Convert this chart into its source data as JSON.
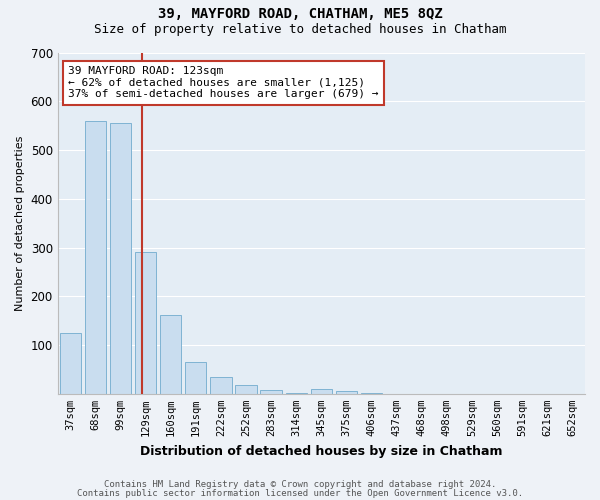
{
  "title": "39, MAYFORD ROAD, CHATHAM, ME5 8QZ",
  "subtitle": "Size of property relative to detached houses in Chatham",
  "xlabel": "Distribution of detached houses by size in Chatham",
  "ylabel": "Number of detached properties",
  "categories": [
    "37sqm",
    "68sqm",
    "99sqm",
    "129sqm",
    "160sqm",
    "191sqm",
    "222sqm",
    "252sqm",
    "283sqm",
    "314sqm",
    "345sqm",
    "375sqm",
    "406sqm",
    "437sqm",
    "468sqm",
    "498sqm",
    "529sqm",
    "560sqm",
    "591sqm",
    "621sqm",
    "652sqm"
  ],
  "values": [
    125,
    560,
    555,
    290,
    162,
    65,
    35,
    18,
    8,
    2,
    10,
    5,
    2,
    0,
    0,
    0,
    0,
    0,
    0,
    0,
    0
  ],
  "bar_color": "#c9ddef",
  "bar_edgecolor": "#7fb3d3",
  "marker_color": "#c0392b",
  "annotation_text": "39 MAYFORD ROAD: 123sqm\n← 62% of detached houses are smaller (1,125)\n37% of semi-detached houses are larger (679) →",
  "annotation_box_edgecolor": "#c0392b",
  "ylim": [
    0,
    700
  ],
  "yticks": [
    0,
    100,
    200,
    300,
    400,
    500,
    600,
    700
  ],
  "footnote1": "Contains HM Land Registry data © Crown copyright and database right 2024.",
  "footnote2": "Contains public sector information licensed under the Open Government Licence v3.0.",
  "background_color": "#eef2f7",
  "plot_background": "#e4edf5",
  "title_fontsize": 10,
  "subtitle_fontsize": 9
}
